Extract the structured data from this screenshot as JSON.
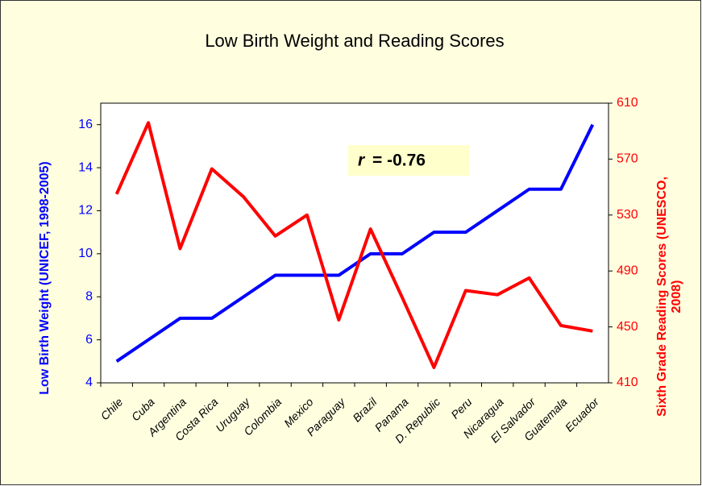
{
  "chart_data": {
    "type": "line",
    "title": "Low Birth Weight and Reading Scores",
    "ylabel": "Low Birth Weight (UNICEF, 1998-2005)",
    "y2label": [
      "Sixth Grade Reading Scores (UNESCO,",
      "2008)"
    ],
    "annotation": {
      "symbol": "r",
      "text": "= -0.76"
    },
    "categories": [
      "Chile",
      "Cuba",
      "Argentina",
      "Costa Rica",
      "Uruguay",
      "Colombia",
      "Mexico",
      "Paraguay",
      "Brazil",
      "Panama",
      "D. Republic",
      "Peru",
      "Nicaragua",
      "El Salvador",
      "Guatemala",
      "Ecuador"
    ],
    "series": [
      {
        "name": "Low Birth Weight",
        "color": "#0000ff",
        "values": [
          5,
          6,
          7,
          7,
          8,
          9,
          9,
          9,
          10,
          10,
          11,
          11,
          12,
          13,
          13,
          16
        ]
      },
      {
        "name": "Sixth Grade Reading Scores",
        "color": "#ff0000",
        "axis": "y2",
        "values": [
          545,
          596,
          506,
          563,
          543,
          515,
          530,
          455,
          520,
          471,
          421,
          476,
          473,
          485,
          451,
          447
        ]
      }
    ],
    "ylim": [
      4,
      17
    ],
    "yticks": [
      4,
      6,
      8,
      10,
      12,
      14,
      16
    ],
    "y2lim": [
      410,
      610
    ],
    "y2ticks": [
      410,
      450,
      490,
      530,
      570,
      610
    ]
  }
}
